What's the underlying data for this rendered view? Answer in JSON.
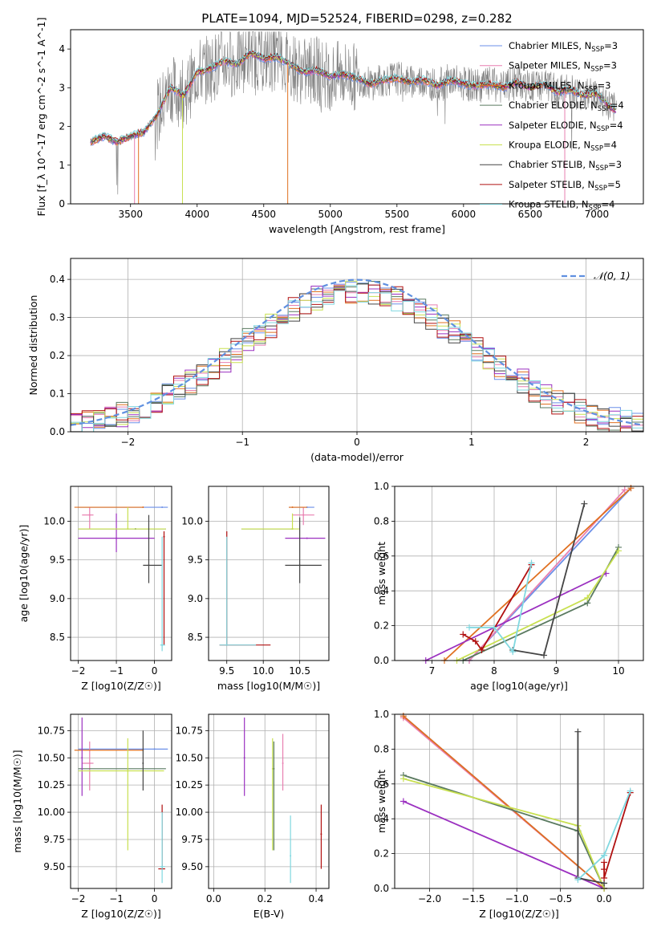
{
  "colors": {
    "Chabrier MILES": "#6b8fe8",
    "Salpeter MILES": "#e87fb0",
    "Kroupa MILES": "#e07020",
    "Chabrier ELODIE": "#5a7a60",
    "Salpeter ELODIE": "#9b30c0",
    "Kroupa ELODIE": "#c8e050",
    "Chabrier STELIB": "#444444",
    "Salpeter STELIB": "#b01010",
    "Kroupa STELIB": "#80d8e0",
    "gaussian": "#6090e0",
    "data": "#808080"
  },
  "chart_data": [
    {
      "id": "spectrum",
      "type": "line",
      "title": "PLATE=1094, MJD=52524, FIBERID=0298, z=0.282",
      "xlabel": "wavelength [Angstrom, rest frame]",
      "ylabel": "Flux [f_λ 10^-17 erg cm^-2 s^-1 A^-1]",
      "xlim": [
        3050,
        7350
      ],
      "ylim": [
        0,
        4.5
      ],
      "xticks": [
        "3500",
        "4000",
        "4500",
        "5000",
        "5500",
        "6000",
        "6500",
        "7000"
      ],
      "yticks": [
        "0",
        "1",
        "2",
        "3",
        "4"
      ],
      "grid": false,
      "legend_position": "top-right",
      "legend": [
        {
          "name": "Chabrier MILES",
          "nssp": "=3"
        },
        {
          "name": "Salpeter MILES",
          "nssp": "=3"
        },
        {
          "name": "Kroupa MILES",
          "nssp": "=3"
        },
        {
          "name": "Chabrier ELODIE",
          "nssp": "=4"
        },
        {
          "name": "Salpeter ELODIE",
          "nssp": "=4"
        },
        {
          "name": "Kroupa ELODIE",
          "nssp": "=4"
        },
        {
          "name": "Chabrier STELIB",
          "nssp": "=3"
        },
        {
          "name": "Salpeter STELIB",
          "nssp": "=5"
        },
        {
          "name": "Kroupa STELIB",
          "nssp": "=4"
        }
      ],
      "model_curve": {
        "x": [
          3200,
          3300,
          3400,
          3500,
          3600,
          3700,
          3800,
          3900,
          4000,
          4100,
          4200,
          4300,
          4400,
          4500,
          4600,
          4700,
          4800,
          4900,
          5000,
          5100,
          5200,
          5300,
          5400,
          5500,
          5600,
          5700,
          5800,
          5900,
          6000,
          6100,
          6200,
          6300,
          6400,
          6500,
          6600,
          6700,
          6800,
          6900,
          7000,
          7100,
          7150
        ],
        "y": [
          1.6,
          1.75,
          1.6,
          1.75,
          1.85,
          2.3,
          3.0,
          2.8,
          3.4,
          3.5,
          3.7,
          3.6,
          3.9,
          3.75,
          3.8,
          3.6,
          3.4,
          3.45,
          3.3,
          3.35,
          3.25,
          3.1,
          3.2,
          3.25,
          3.15,
          3.2,
          3.05,
          3.2,
          3.1,
          3.05,
          3.1,
          3.0,
          3.15,
          3.0,
          3.1,
          2.9,
          2.95,
          2.8,
          2.85,
          2.5,
          2.4
        ]
      }
    },
    {
      "id": "residuals",
      "type": "line",
      "xlabel": "(data-model)/error",
      "ylabel": "Normed distribution",
      "xlim": [
        -2.5,
        2.5
      ],
      "ylim": [
        0,
        0.455
      ],
      "xticks": [
        "−2",
        "−1",
        "0",
        "1",
        "2"
      ],
      "yticks": [
        "0.0",
        "0.1",
        "0.2",
        "0.3",
        "0.4"
      ],
      "grid": true,
      "legend_label": "𝒩(0, 1)",
      "legend_position": "top-right"
    },
    {
      "id": "age-vs-Z",
      "type": "scatter",
      "xlabel": "Z [log10(Z/Z☉)]",
      "ylabel": "age  [log10(age/yr)]",
      "xlim": [
        -2.2,
        0.45
      ],
      "ylim": [
        8.2,
        10.45
      ],
      "xticks": [
        "−2",
        "−1",
        "0"
      ],
      "yticks": [
        "8.5",
        "9.0",
        "9.5",
        "10.0"
      ],
      "grid": true,
      "points": [
        {
          "s": "Chabrier MILES",
          "x": 0.2,
          "y": 10.18,
          "xl": -2.0,
          "xh": 0.35,
          "yl": 10.18,
          "yh": 10.18
        },
        {
          "s": "Salpeter MILES",
          "x": -1.7,
          "y": 10.08,
          "xl": -1.9,
          "xh": -1.6,
          "yl": 9.9,
          "yh": 10.18
        },
        {
          "s": "Kroupa MILES",
          "x": -0.3,
          "y": 10.18,
          "xl": -2.1,
          "xh": -0.3,
          "yl": 10.18,
          "yh": 10.18
        },
        {
          "s": "Chabrier ELODIE",
          "x": -0.5,
          "y": 9.9,
          "xl": -2.0,
          "xh": 0.3,
          "yl": 9.9,
          "yh": 9.9
        },
        {
          "s": "Salpeter ELODIE",
          "x": -1.0,
          "y": 9.78,
          "xl": -2.0,
          "xh": 0.0,
          "yl": 9.6,
          "yh": 10.1
        },
        {
          "s": "Kroupa ELODIE",
          "x": -0.7,
          "y": 9.9,
          "xl": -2.0,
          "xh": 0.3,
          "yl": 9.9,
          "yh": 10.18
        },
        {
          "s": "Chabrier STELIB",
          "x": -0.15,
          "y": 9.43,
          "xl": -0.3,
          "xh": 0.2,
          "yl": 9.2,
          "yh": 10.08
        },
        {
          "s": "Salpeter STELIB",
          "x": 0.25,
          "y": 9.8,
          "xl": 0.25,
          "xh": 0.25,
          "yl": 8.4,
          "yh": 9.87
        },
        {
          "s": "Kroupa STELIB",
          "x": 0.2,
          "y": 8.4,
          "xl": 0.15,
          "xh": 0.28,
          "yl": 8.32,
          "yh": 9.8
        }
      ]
    },
    {
      "id": "age-vs-mass",
      "type": "scatter",
      "xlabel": "mass [log10(M/M☉)]",
      "xlim": [
        9.25,
        10.9
      ],
      "ylim": [
        8.2,
        10.45
      ],
      "xticks": [
        "9.5",
        "10.0",
        "10.5"
      ],
      "yticks": [
        "8.5",
        "9.0",
        "9.5",
        "10.0"
      ],
      "grid": true,
      "points": [
        {
          "s": "Chabrier MILES",
          "x": 10.6,
          "y": 10.18,
          "xl": 10.35,
          "xh": 10.7,
          "yl": 10.18,
          "yh": 10.18
        },
        {
          "s": "Salpeter MILES",
          "x": 10.55,
          "y": 10.08,
          "xl": 10.4,
          "xh": 10.7,
          "yl": 9.95,
          "yh": 10.18
        },
        {
          "s": "Kroupa MILES",
          "x": 10.4,
          "y": 10.18,
          "xl": 10.35,
          "xh": 10.6,
          "yl": 10.18,
          "yh": 10.18
        },
        {
          "s": "Chabrier ELODIE",
          "x": 10.4,
          "y": 9.9,
          "xl": 9.7,
          "xh": 10.4,
          "yl": 9.9,
          "yh": 9.9
        },
        {
          "s": "Salpeter ELODIE",
          "x": 10.6,
          "y": 9.78,
          "xl": 10.3,
          "xh": 10.85,
          "yl": 9.78,
          "yh": 9.78
        },
        {
          "s": "Kroupa ELODIE",
          "x": 10.4,
          "y": 9.9,
          "xl": 9.7,
          "xh": 10.5,
          "yl": 9.9,
          "yh": 10.1
        },
        {
          "s": "Chabrier STELIB",
          "x": 10.5,
          "y": 9.43,
          "xl": 10.3,
          "xh": 10.8,
          "yl": 9.2,
          "yh": 10.05
        },
        {
          "s": "Salpeter STELIB",
          "x": 9.5,
          "y": 8.4,
          "xl": 9.4,
          "xh": 10.1,
          "yl": 8.4,
          "yh": 9.87
        },
        {
          "s": "Kroupa STELIB",
          "x": 9.5,
          "y": 8.4,
          "xl": 9.4,
          "xh": 9.9,
          "yl": 8.4,
          "yh": 9.8
        }
      ]
    },
    {
      "id": "weight-vs-age",
      "type": "line",
      "xlabel": "age  [log10(age/yr)]",
      "ylabel": "mass weight",
      "xlim": [
        6.4,
        10.4
      ],
      "ylim": [
        0,
        1.0
      ],
      "xticks": [
        "7",
        "8",
        "9",
        "10"
      ],
      "yticks": [
        "0.0",
        "0.2",
        "0.4",
        "0.6",
        "0.8",
        "1.0"
      ],
      "grid": true,
      "series": [
        {
          "s": "Chabrier MILES",
          "x": [
            7.6,
            10.2
          ],
          "y": [
            0.0,
            0.99
          ]
        },
        {
          "s": "Salpeter MILES",
          "x": [
            7.6,
            10.1
          ],
          "y": [
            0.0,
            0.98
          ]
        },
        {
          "s": "Kroupa MILES",
          "x": [
            7.2,
            10.2
          ],
          "y": [
            0.0,
            0.99
          ]
        },
        {
          "s": "Chabrier ELODIE",
          "x": [
            7.5,
            9.5,
            10.0
          ],
          "y": [
            0.0,
            0.33,
            0.65
          ]
        },
        {
          "s": "Salpeter ELODIE",
          "x": [
            6.9,
            9.8
          ],
          "y": [
            0.0,
            0.5
          ]
        },
        {
          "s": "Kroupa ELODIE",
          "x": [
            7.4,
            9.5,
            10.0
          ],
          "y": [
            0.0,
            0.36,
            0.63
          ]
        },
        {
          "s": "Chabrier STELIB",
          "x": [
            8.3,
            8.8,
            9.45
          ],
          "y": [
            0.06,
            0.03,
            0.9
          ]
        },
        {
          "s": "Salpeter STELIB",
          "x": [
            7.5,
            7.7,
            7.8,
            8.6
          ],
          "y": [
            0.15,
            0.11,
            0.06,
            0.55
          ]
        },
        {
          "s": "Kroupa STELIB",
          "x": [
            7.6,
            8.0,
            8.3,
            8.6
          ],
          "y": [
            0.19,
            0.19,
            0.05,
            0.56
          ]
        }
      ]
    },
    {
      "id": "mass-vs-Z",
      "type": "scatter",
      "xlabel": "Z [log10(Z/Z☉)]",
      "ylabel": "mass [log10(M/M☉)]",
      "xlim": [
        -2.2,
        0.45
      ],
      "ylim": [
        9.3,
        10.9
      ],
      "xticks": [
        "−2",
        "−1",
        "0"
      ],
      "yticks": [
        "9.50",
        "9.75",
        "10.00",
        "10.25",
        "10.50",
        "10.75"
      ],
      "grid": true,
      "points": [
        {
          "s": "Chabrier MILES",
          "x": 0.0,
          "y": 10.58,
          "xl": -2.0,
          "xh": 0.35,
          "yl": 10.58,
          "yh": 10.58
        },
        {
          "s": "Salpeter MILES",
          "x": -1.7,
          "y": 10.45,
          "xl": -1.9,
          "xh": -1.6,
          "yl": 10.2,
          "yh": 10.65
        },
        {
          "s": "Kroupa MILES",
          "x": -0.3,
          "y": 10.57,
          "xl": -2.1,
          "xh": -0.3,
          "yl": 10.57,
          "yh": 10.57
        },
        {
          "s": "Chabrier ELODIE",
          "x": -0.7,
          "y": 10.4,
          "xl": -2.0,
          "xh": 0.3,
          "yl": 10.4,
          "yh": 10.4
        },
        {
          "s": "Salpeter ELODIE",
          "x": -1.9,
          "y": 10.5,
          "xl": -1.9,
          "xh": -1.9,
          "yl": 10.15,
          "yh": 10.87
        },
        {
          "s": "Kroupa ELODIE",
          "x": -0.7,
          "y": 10.38,
          "xl": -2.0,
          "xh": 0.25,
          "yl": 9.65,
          "yh": 10.68
        },
        {
          "s": "Chabrier STELIB",
          "x": -0.3,
          "y": 10.45,
          "xl": -0.3,
          "xh": -0.3,
          "yl": 10.2,
          "yh": 10.75
        },
        {
          "s": "Salpeter STELIB",
          "x": 0.2,
          "y": 9.48,
          "xl": 0.1,
          "xh": 0.28,
          "yl": 9.48,
          "yh": 10.07
        },
        {
          "s": "Kroupa STELIB",
          "x": 0.2,
          "y": 9.5,
          "xl": 0.15,
          "xh": 0.28,
          "yl": 9.35,
          "yh": 10.0
        }
      ]
    },
    {
      "id": "mass-vs-EBV",
      "type": "scatter",
      "xlabel": "E(B-V)",
      "xlim": [
        -0.02,
        0.45
      ],
      "ylim": [
        9.3,
        10.9
      ],
      "xticks": [
        "0.0",
        "0.2",
        "0.4"
      ],
      "yticks": [
        "9.50",
        "9.75",
        "10.00",
        "10.25",
        "10.50",
        "10.75"
      ],
      "grid": true,
      "points": [
        {
          "s": "Salpeter ELODIE",
          "x": 0.12,
          "y": 10.5,
          "xl": 0.12,
          "xh": 0.12,
          "yl": 10.15,
          "yh": 10.87
        },
        {
          "s": "Salpeter MILES",
          "x": 0.27,
          "y": 10.45,
          "xl": 0.27,
          "xh": 0.27,
          "yl": 10.2,
          "yh": 10.72
        },
        {
          "s": "Kroupa ELODIE",
          "x": 0.23,
          "y": 10.4,
          "xl": 0.23,
          "xh": 0.23,
          "yl": 9.65,
          "yh": 10.68
        },
        {
          "s": "Chabrier ELODIE",
          "x": 0.235,
          "y": 10.4,
          "xl": 0.235,
          "xh": 0.235,
          "yl": 9.65,
          "yh": 10.65
        },
        {
          "s": "Kroupa STELIB",
          "x": 0.3,
          "y": 9.6,
          "xl": 0.3,
          "xh": 0.3,
          "yl": 9.35,
          "yh": 9.97
        },
        {
          "s": "Salpeter STELIB",
          "x": 0.42,
          "y": 9.8,
          "xl": 0.42,
          "xh": 0.42,
          "yl": 9.48,
          "yh": 10.07
        }
      ]
    },
    {
      "id": "weight-vs-Z",
      "type": "line",
      "xlabel": "Z [log10(Z/Z☉)]",
      "ylabel": "mass weight",
      "xlim": [
        -2.4,
        0.45
      ],
      "ylim": [
        0,
        1.0
      ],
      "xticks": [
        "−2.0",
        "−1.5",
        "−1.0",
        "−0.5",
        "0.0"
      ],
      "yticks": [
        "0.0",
        "0.2",
        "0.4",
        "0.6",
        "0.8",
        "1.0"
      ],
      "grid": true,
      "series": [
        {
          "s": "Chabrier MILES",
          "x": [
            -2.3,
            0.0
          ],
          "y": [
            0.99,
            0.0
          ]
        },
        {
          "s": "Salpeter MILES",
          "x": [
            -2.3,
            0.0
          ],
          "y": [
            0.98,
            0.0
          ]
        },
        {
          "s": "Kroupa MILES",
          "x": [
            -2.3,
            0.0
          ],
          "y": [
            0.99,
            0.0
          ]
        },
        {
          "s": "Chabrier ELODIE",
          "x": [
            -2.3,
            -0.3,
            0.0
          ],
          "y": [
            0.65,
            0.33,
            0.0
          ]
        },
        {
          "s": "Salpeter ELODIE",
          "x": [
            -2.3,
            0.0
          ],
          "y": [
            0.5,
            0.0
          ]
        },
        {
          "s": "Kroupa ELODIE",
          "x": [
            -2.3,
            -0.3,
            0.0
          ],
          "y": [
            0.63,
            0.36,
            0.0
          ]
        },
        {
          "s": "Chabrier STELIB",
          "x": [
            -0.3,
            -0.3,
            0.0,
            0.0
          ],
          "y": [
            0.9,
            0.06,
            0.03,
            0.03
          ]
        },
        {
          "s": "Salpeter STELIB",
          "x": [
            0.0,
            0.0,
            0.0,
            0.3
          ],
          "y": [
            0.15,
            0.11,
            0.06,
            0.55
          ]
        },
        {
          "s": "Kroupa STELIB",
          "x": [
            -0.3,
            0.0,
            0.0,
            0.3
          ],
          "y": [
            0.05,
            0.19,
            0.19,
            0.56
          ]
        }
      ]
    }
  ]
}
